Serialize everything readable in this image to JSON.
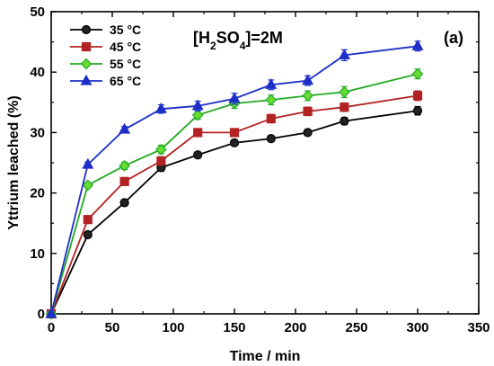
{
  "chart_data": {
    "type": "line",
    "xlabel": "Time / min",
    "ylabel": "Yttrium leached (%)",
    "xlim": [
      0,
      350
    ],
    "ylim": [
      0,
      50
    ],
    "xticks": [
      0,
      50,
      100,
      150,
      200,
      250,
      300,
      350
    ],
    "yticks": [
      0,
      10,
      20,
      30,
      40,
      50
    ],
    "grid": false,
    "legend_position": "top-left",
    "annotations": {
      "condition_prefix": "[H",
      "condition_sub1": "2",
      "condition_mid": "SO",
      "condition_sub2": "4",
      "condition_suffix": "]=2M",
      "panel": "(a)"
    },
    "x": [
      0,
      30,
      60,
      90,
      120,
      150,
      180,
      210,
      240,
      300
    ],
    "series": [
      {
        "name": "35 °C",
        "marker": "circle",
        "color": "#000000",
        "fill": "#222222",
        "values": [
          0,
          13.1,
          18.4,
          24.2,
          26.3,
          28.3,
          29.0,
          30.0,
          31.9,
          33.6
        ],
        "errors": [
          0,
          0.4,
          0.5,
          0.6,
          0.5,
          0.5,
          0.5,
          0.5,
          0.6,
          0.7
        ]
      },
      {
        "name": "45 °C",
        "marker": "square",
        "color": "#b22222",
        "fill": "#b22222",
        "values": [
          0,
          15.6,
          21.9,
          25.3,
          30.0,
          30.0,
          32.3,
          33.5,
          34.2,
          36.1
        ],
        "errors": [
          0,
          0.5,
          0.5,
          0.7,
          0.6,
          0.6,
          0.7,
          0.7,
          0.7,
          0.8
        ]
      },
      {
        "name": "55 °C",
        "marker": "diamond",
        "color": "#22aa22",
        "fill": "#66dd33",
        "values": [
          0,
          21.3,
          24.5,
          27.2,
          32.9,
          34.8,
          35.4,
          36.1,
          36.7,
          39.7
        ],
        "errors": [
          0,
          0.4,
          0.6,
          0.7,
          0.7,
          0.8,
          0.8,
          0.8,
          0.9,
          0.8
        ]
      },
      {
        "name": "65 °C",
        "marker": "triangle",
        "color": "#1e2fc8",
        "fill": "#1e2fc8",
        "values": [
          0,
          24.7,
          30.5,
          33.9,
          34.4,
          35.6,
          37.9,
          38.6,
          42.8,
          44.3
        ],
        "errors": [
          0,
          0.4,
          0.5,
          0.7,
          0.8,
          0.9,
          0.8,
          0.8,
          0.9,
          0.8
        ]
      }
    ]
  }
}
